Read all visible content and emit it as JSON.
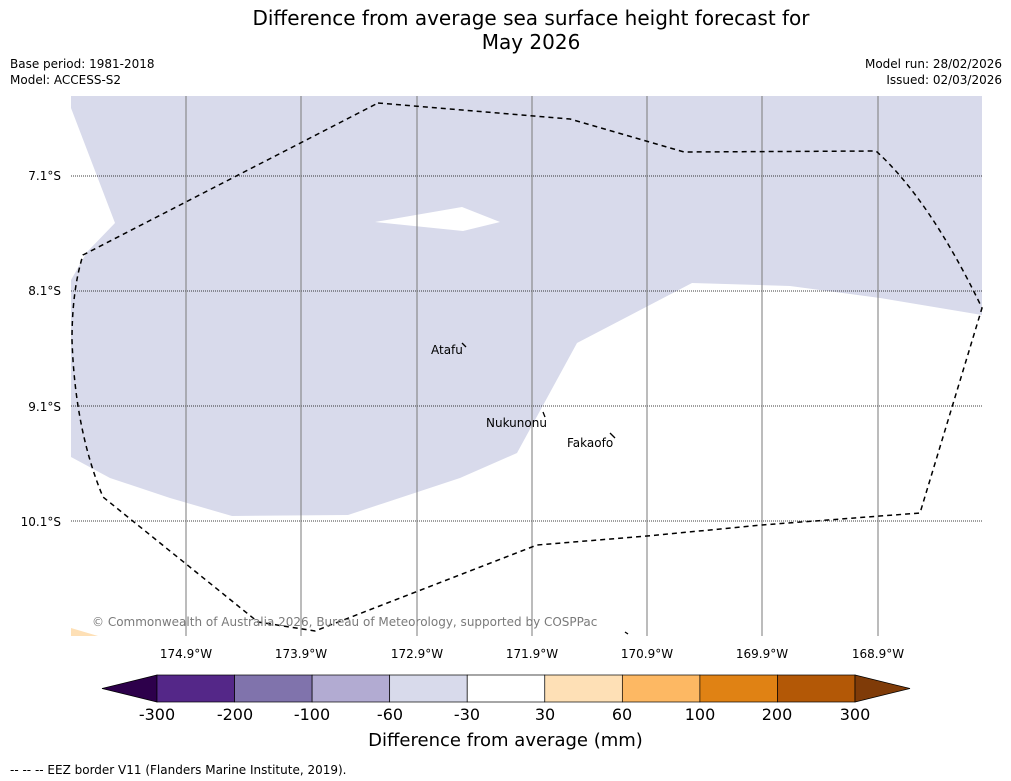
{
  "title_line1": "Difference from average sea surface height forecast for",
  "title_line2": "May 2026",
  "base_period": "Base period: 1981-2018",
  "model": "Model: ACCESS-S2",
  "model_run": "Model run: 28/02/2026",
  "issued": "Issued: 02/03/2026",
  "lat_labels": [
    "7.1°S",
    "8.1°S",
    "9.1°S",
    "10.1°S"
  ],
  "lon_labels": [
    "174.9°W",
    "173.9°W",
    "172.9°W",
    "171.9°W",
    "170.9°W",
    "169.9°W",
    "168.9°W"
  ],
  "places": [
    "Atafu",
    "Nukunonu",
    "Fakaofo"
  ],
  "copyright": "© Commonwealth of Australia 2026, Bureau of Meteorology, supported by COSPPac",
  "colorbar": {
    "ticks": [
      "-300",
      "-200",
      "-100",
      "-60",
      "-30",
      "30",
      "60",
      "100",
      "200",
      "300"
    ],
    "colors": [
      "#2d004b",
      "#542788",
      "#8073ac",
      "#b2abd2",
      "#d8daeb",
      "#ffffff",
      "#fee0b6",
      "#fdb863",
      "#e08214",
      "#b35806",
      "#7f3b08"
    ],
    "title": "Difference from average (mm)"
  },
  "legend_note": "--  --  -- EEZ border V11 (Flanders Marine Institute, 2019)."
}
